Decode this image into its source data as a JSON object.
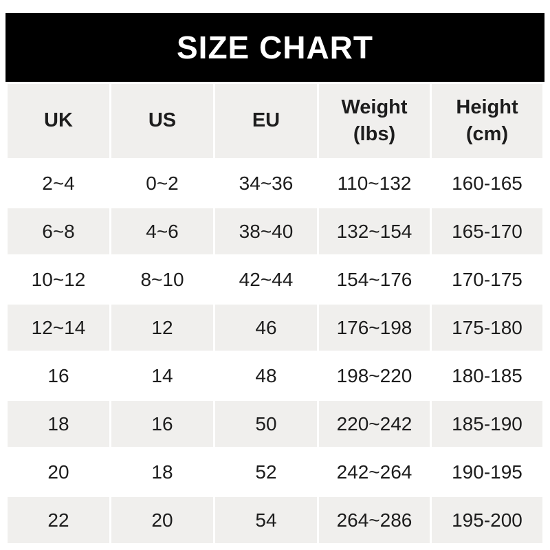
{
  "title": "SIZE CHART",
  "colors": {
    "band_bg": "#000000",
    "title_text": "#ffffff",
    "alt_row_bg": "#f0efed",
    "cell_text": "#1d1d1d"
  },
  "chart_data": {
    "type": "table",
    "title": "SIZE CHART",
    "columns": [
      {
        "label": "UK",
        "sublabel": ""
      },
      {
        "label": "US",
        "sublabel": ""
      },
      {
        "label": "EU",
        "sublabel": ""
      },
      {
        "label": "Weight",
        "sublabel": "(lbs)"
      },
      {
        "label": "Height",
        "sublabel": "(cm)"
      }
    ],
    "rows": [
      [
        "2~4",
        "0~2",
        "34~36",
        "110~132",
        "160-165"
      ],
      [
        "6~8",
        "4~6",
        "38~40",
        "132~154",
        "165-170"
      ],
      [
        "10~12",
        "8~10",
        "42~44",
        "154~176",
        "170-175"
      ],
      [
        "12~14",
        "12",
        "46",
        "176~198",
        "175-180"
      ],
      [
        "16",
        "14",
        "48",
        "198~220",
        "180-185"
      ],
      [
        "18",
        "16",
        "50",
        "220~242",
        "185-190"
      ],
      [
        "20",
        "18",
        "52",
        "242~264",
        "190-195"
      ],
      [
        "22",
        "20",
        "54",
        "264~286",
        "195-200"
      ]
    ]
  }
}
